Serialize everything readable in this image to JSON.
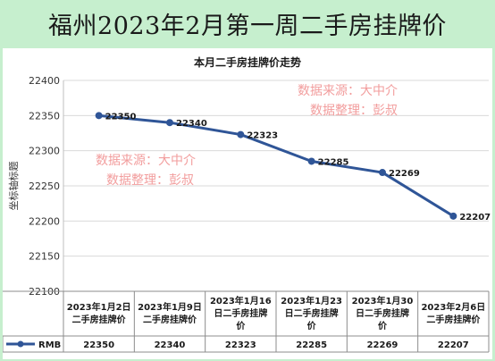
{
  "page_title": "福州2023年2月第一周二手房挂牌价",
  "watermark": {
    "line1": "数据来源：大中介",
    "line2": "数据整理：彭叔"
  },
  "colors": {
    "background": "#c6efce",
    "series": "#2f5597",
    "watermark": "#f08c8c"
  },
  "chart_data": {
    "type": "line",
    "title": "本月二手房挂牌价走势",
    "ylabel": "坐标轴标题",
    "xlabel": "",
    "ylim": [
      22100,
      22400
    ],
    "yticks": [
      22100,
      22150,
      22200,
      22250,
      22300,
      22350,
      22400
    ],
    "grid": true,
    "categories": [
      [
        "2023年1月2日",
        "二手房挂牌价"
      ],
      [
        "2023年1月9日",
        "二手房挂牌价"
      ],
      [
        "2023年1月16",
        "日二手房挂牌",
        "价"
      ],
      [
        "2023年1月23",
        "日二手房挂牌",
        "价"
      ],
      [
        "2023年1月30",
        "日二手房挂牌",
        "价"
      ],
      [
        "2023年2月6日",
        "二手房挂牌价"
      ]
    ],
    "series": [
      {
        "name": "RMB",
        "values": [
          22350,
          22340,
          22323,
          22285,
          22269,
          22207
        ]
      }
    ],
    "data_table": true
  }
}
